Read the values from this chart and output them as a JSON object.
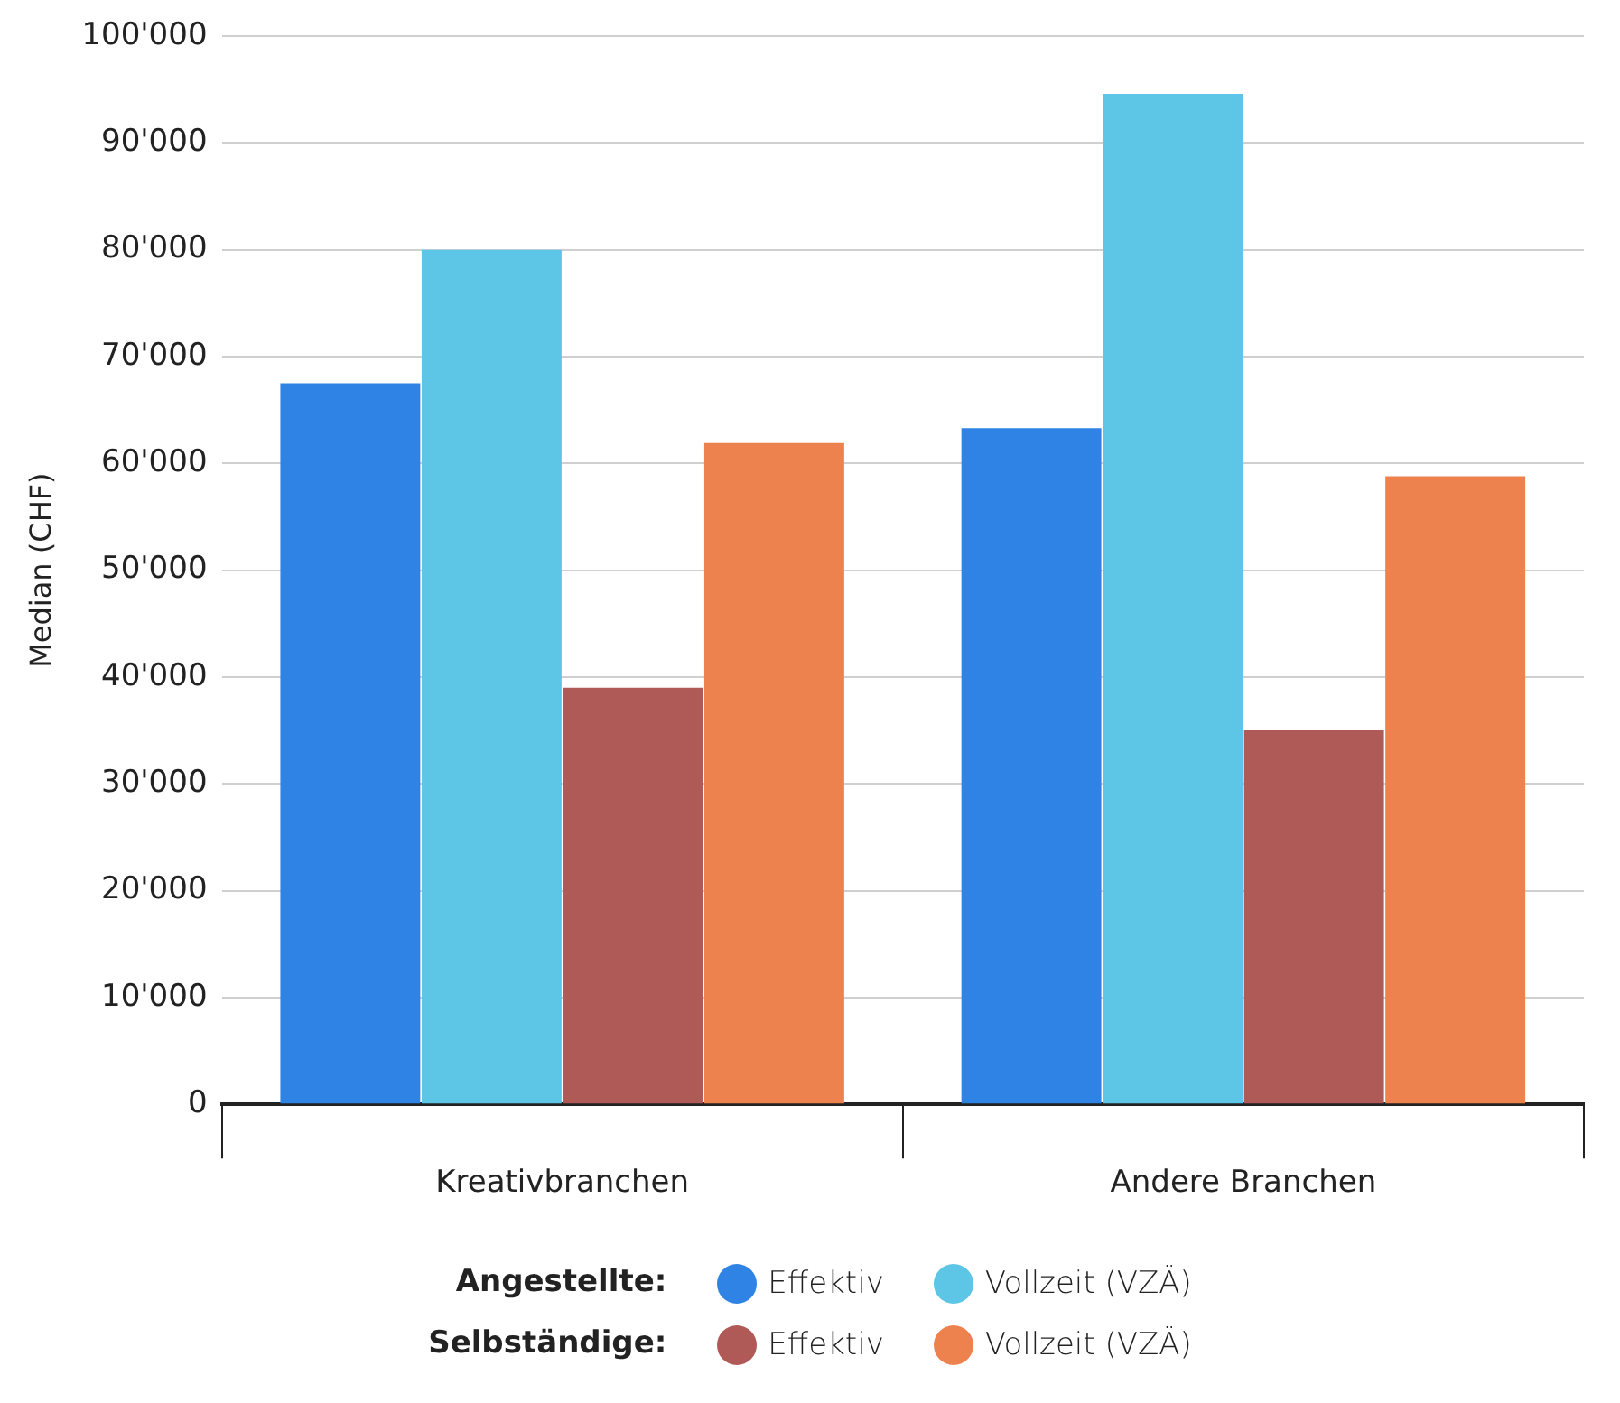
{
  "chart_data": {
    "type": "bar",
    "ylabel": "Median (CHF)",
    "categories": [
      "Kreativbranchen",
      "Andere Branchen"
    ],
    "series": [
      {
        "name": "Effektiv",
        "color": "#2f83e4",
        "values": [
          67500,
          63300
        ]
      },
      {
        "name": "Vollzeit (VZÄ)",
        "color": "#5dc5e5",
        "values": [
          80000,
          94600
        ]
      },
      {
        "name": "Effektiv",
        "color": "#b05a57",
        "values": [
          39000,
          35000
        ]
      },
      {
        "name": "Vollzeit (VZÄ)",
        "color": "#ee824f",
        "values": [
          61900,
          58800
        ]
      }
    ],
    "ylim": [
      0,
      100000
    ],
    "yticks": [
      0,
      {
        "value": 10000,
        "label": "10'000"
      },
      {
        "value": 20000,
        "label": "20'000"
      },
      {
        "value": 30000,
        "label": "30'000"
      },
      {
        "value": 40000,
        "label": "40'000"
      },
      {
        "value": 50000,
        "label": "50'000"
      },
      {
        "value": 60000,
        "label": "60'000"
      },
      {
        "value": 70000,
        "label": "70'000"
      },
      {
        "value": 80000,
        "label": "80'000"
      },
      {
        "value": 90000,
        "label": "90'000"
      },
      {
        "value": 100000,
        "label": "100'000"
      }
    ],
    "grid": "y",
    "legend": "bottom",
    "annotations": [
      "Angestellte:",
      "Selbständige:"
    ]
  }
}
